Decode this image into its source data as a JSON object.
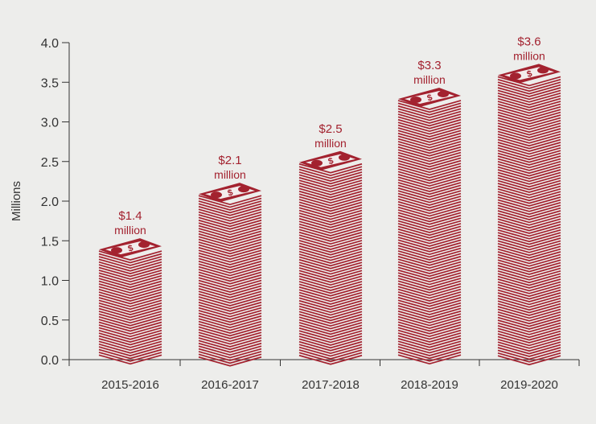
{
  "chart_data": {
    "type": "bar",
    "style": "stacked banknote pictograph bars",
    "ylabel": "Millions",
    "xlabel": "",
    "ylim": [
      0,
      4
    ],
    "yticks": [
      "0.0",
      "0.5",
      "1.0",
      "1.5",
      "2.0",
      "2.5",
      "3.0",
      "3.5",
      "4.0"
    ],
    "categories": [
      "2015-2016",
      "2016-2017",
      "2017-2018",
      "2018-2019",
      "2019-2020"
    ],
    "values": [
      1.4,
      2.1,
      2.5,
      3.3,
      3.6
    ],
    "data_labels": [
      {
        "amount": "$1.4",
        "unit": "million"
      },
      {
        "amount": "$2.1",
        "unit": "million"
      },
      {
        "amount": "$2.5",
        "unit": "million"
      },
      {
        "amount": "$3.3",
        "unit": "million"
      },
      {
        "amount": "$3.6",
        "unit": "million"
      }
    ],
    "grid": false,
    "legend": "none",
    "colors": {
      "bar": "#a3222f",
      "label": "#a3222f",
      "axis": "#333333",
      "background": "#ededeb"
    }
  }
}
